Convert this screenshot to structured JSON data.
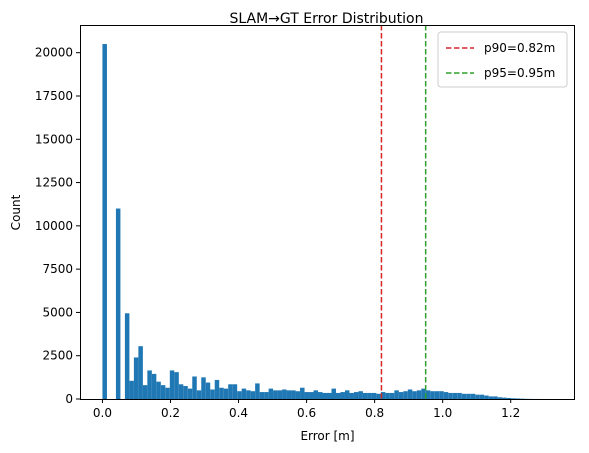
{
  "chart_data": {
    "type": "bar",
    "title": "SLAM→GT Error Distribution",
    "xlabel": "Error [m]",
    "ylabel": "Count",
    "xlim": [
      -0.066,
      1.386
    ],
    "ylim": [
      0,
      21600
    ],
    "xticks": [
      0.0,
      0.2,
      0.4,
      0.6,
      0.8,
      1.0,
      1.2
    ],
    "xtick_labels": [
      "0.0",
      "0.2",
      "0.4",
      "0.6",
      "0.8",
      "1.0",
      "1.2"
    ],
    "yticks": [
      0,
      2500,
      5000,
      7500,
      10000,
      12500,
      15000,
      17500,
      20000
    ],
    "ytick_labels": [
      "0",
      "2500",
      "5000",
      "7500",
      "10000",
      "12500",
      "15000",
      "17500",
      "20000"
    ],
    "grid": false,
    "legend_position": "top-right",
    "bar_color": "#1f77b4",
    "bin_width": 0.0132,
    "bins": {
      "x": [
        0.0,
        0.0132,
        0.0264,
        0.0396,
        0.0528,
        0.066,
        0.0792,
        0.0924,
        0.1056,
        0.1188,
        0.132,
        0.1452,
        0.1584,
        0.1716,
        0.1848,
        0.198,
        0.2112,
        0.2244,
        0.2376,
        0.2508,
        0.264,
        0.2772,
        0.2904,
        0.3036,
        0.3168,
        0.33,
        0.3432,
        0.3564,
        0.3696,
        0.3828,
        0.396,
        0.4092,
        0.4224,
        0.4356,
        0.4488,
        0.462,
        0.4752,
        0.4884,
        0.5016,
        0.5148,
        0.528,
        0.5412,
        0.5544,
        0.5676,
        0.5808,
        0.594,
        0.6072,
        0.6204,
        0.6336,
        0.6468,
        0.66,
        0.6732,
        0.6864,
        0.6996,
        0.7128,
        0.726,
        0.7392,
        0.7524,
        0.7656,
        0.7788,
        0.792,
        0.8052,
        0.8184,
        0.8316,
        0.8448,
        0.858,
        0.8712,
        0.8844,
        0.8976,
        0.9108,
        0.924,
        0.9372,
        0.9504,
        0.9636,
        0.9768,
        0.99,
        1.0032,
        1.0164,
        1.0296,
        1.0428,
        1.056,
        1.0692,
        1.0824,
        1.0956,
        1.1088,
        1.122,
        1.1352,
        1.1484,
        1.1616,
        1.1748,
        1.188,
        1.2012,
        1.2144,
        1.2276,
        1.2408,
        1.254,
        1.2672,
        1.2804,
        1.2936,
        1.3068
      ],
      "counts": [
        20500,
        0,
        0,
        11000,
        0,
        4950,
        1050,
        2400,
        3050,
        800,
        1650,
        1450,
        1000,
        800,
        650,
        1650,
        1550,
        850,
        750,
        600,
        1300,
        500,
        1250,
        950,
        550,
        1100,
        650,
        600,
        850,
        850,
        450,
        600,
        500,
        450,
        900,
        400,
        400,
        600,
        500,
        500,
        550,
        500,
        500,
        450,
        650,
        400,
        400,
        500,
        400,
        350,
        350,
        600,
        350,
        400,
        500,
        350,
        400,
        450,
        350,
        350,
        350,
        300,
        400,
        350,
        350,
        500,
        400,
        450,
        550,
        450,
        500,
        600,
        500,
        450,
        450,
        450,
        400,
        350,
        350,
        350,
        300,
        300,
        300,
        250,
        250,
        200,
        150,
        150,
        100,
        80,
        60,
        40,
        30,
        20,
        10,
        5,
        3,
        2,
        1,
        1
      ]
    },
    "series": [
      {
        "name": "p90=0.82m",
        "type": "vline",
        "x": 0.82,
        "color": "#d62728",
        "linestyle": "dashed"
      },
      {
        "name": "p95=0.95m",
        "type": "vline",
        "x": 0.95,
        "color": "#2ca02c",
        "linestyle": "dashed"
      }
    ]
  }
}
